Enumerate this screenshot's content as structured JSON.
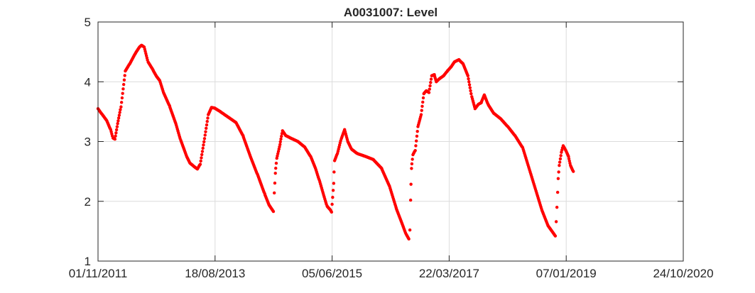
{
  "chart_data": {
    "type": "scatter",
    "title": "A0031007: Level",
    "xlabel": "",
    "ylabel": "",
    "xlim": [
      "2011-11-01",
      "2020-10-24"
    ],
    "ylim": [
      1,
      5
    ],
    "x_ticks": [
      "2011-11-01",
      "2013-08-18",
      "2015-06-05",
      "2017-03-22",
      "2019-01-07",
      "2020-10-24"
    ],
    "x_tick_labels": [
      "01/11/2011",
      "18/08/2013",
      "05/06/2015",
      "22/03/2017",
      "07/01/2019",
      "24/10/2020"
    ],
    "y_ticks": [
      1,
      2,
      3,
      4,
      5
    ],
    "y_tick_labels": [
      "1",
      "2",
      "3",
      "4",
      "5"
    ],
    "grid": true,
    "series": [
      {
        "color": "#ff0000",
        "segments": [
          [
            [
              "2011-11-01",
              3.55
            ],
            [
              "2011-11-23",
              3.46
            ],
            [
              "2011-12-20",
              3.35
            ],
            [
              "2012-01-11",
              3.2
            ],
            [
              "2012-01-24",
              3.06
            ],
            [
              "2012-02-04",
              3.04
            ],
            [
              "2012-02-19",
              3.3
            ],
            [
              "2012-03-09",
              3.58
            ],
            [
              "2012-04-02",
              4.18
            ],
            [
              "2012-04-27",
              4.3
            ],
            [
              "2012-05-28",
              4.47
            ],
            [
              "2012-06-20",
              4.58
            ],
            [
              "2012-07-02",
              4.61
            ],
            [
              "2012-07-17",
              4.58
            ],
            [
              "2012-08-08",
              4.33
            ],
            [
              "2012-09-04",
              4.2
            ],
            [
              "2012-09-24",
              4.09
            ],
            [
              "2012-10-12",
              4.02
            ],
            [
              "2012-11-02",
              3.82
            ],
            [
              "2012-12-06",
              3.6
            ],
            [
              "2013-01-10",
              3.3
            ],
            [
              "2013-02-07",
              3.02
            ],
            [
              "2013-03-12",
              2.75
            ],
            [
              "2013-03-30",
              2.64
            ],
            [
              "2013-04-23",
              2.58
            ],
            [
              "2013-05-11",
              2.54
            ],
            [
              "2013-05-27",
              2.62
            ],
            [
              "2013-06-20",
              3.05
            ],
            [
              "2013-07-11",
              3.45
            ],
            [
              "2013-07-29",
              3.57
            ],
            [
              "2013-08-16",
              3.56
            ],
            [
              "2013-09-17",
              3.5
            ],
            [
              "2013-10-25",
              3.42
            ],
            [
              "2013-12-13",
              3.32
            ],
            [
              "2014-01-22",
              3.1
            ],
            [
              "2014-03-04",
              2.75
            ],
            [
              "2014-04-13",
              2.45
            ],
            [
              "2014-05-23",
              2.13
            ],
            [
              "2014-06-15",
              1.95
            ],
            [
              "2014-07-11",
              1.83
            ]
          ],
          [
            [
              "2014-07-16",
              2.14
            ],
            [
              "2014-07-22",
              2.47
            ],
            [
              "2014-07-30",
              2.72
            ],
            [
              "2014-08-17",
              2.95
            ],
            [
              "2014-08-31",
              3.18
            ],
            [
              "2014-09-18",
              3.1
            ],
            [
              "2014-10-21",
              3.05
            ],
            [
              "2014-11-26",
              3.0
            ],
            [
              "2015-01-02",
              2.91
            ],
            [
              "2015-02-05",
              2.75
            ],
            [
              "2015-03-04",
              2.55
            ],
            [
              "2015-03-26",
              2.35
            ],
            [
              "2015-04-19",
              2.1
            ],
            [
              "2015-05-08",
              1.92
            ],
            [
              "2015-05-28",
              1.85
            ],
            [
              "2015-06-02",
              1.82
            ]
          ],
          [
            [
              "2015-06-05",
              1.95
            ],
            [
              "2015-06-14",
              2.3
            ],
            [
              "2015-06-19",
              2.68
            ],
            [
              "2015-07-05",
              2.8
            ],
            [
              "2015-07-27",
              3.05
            ],
            [
              "2015-08-14",
              3.2
            ],
            [
              "2015-09-01",
              3.0
            ],
            [
              "2015-09-23",
              2.87
            ],
            [
              "2015-10-24",
              2.8
            ],
            [
              "2015-12-10",
              2.75
            ],
            [
              "2016-01-22",
              2.7
            ],
            [
              "2016-03-09",
              2.55
            ],
            [
              "2016-04-22",
              2.25
            ],
            [
              "2016-05-28",
              1.9
            ],
            [
              "2016-07-02",
              1.62
            ],
            [
              "2016-07-24",
              1.45
            ],
            [
              "2016-08-08",
              1.37
            ]
          ],
          [
            [
              "2016-08-14",
              1.52
            ],
            [
              "2016-08-18",
              2.02
            ],
            [
              "2016-08-23",
              2.55
            ],
            [
              "2016-08-31",
              2.78
            ],
            [
              "2016-09-13",
              2.85
            ],
            [
              "2016-09-28",
              3.25
            ],
            [
              "2016-10-16",
              3.45
            ],
            [
              "2016-10-31",
              3.8
            ],
            [
              "2016-11-14",
              3.85
            ],
            [
              "2016-11-29",
              3.82
            ],
            [
              "2016-12-14",
              4.1
            ],
            [
              "2016-12-29",
              4.12
            ],
            [
              "2017-01-09",
              4.0
            ],
            [
              "2017-01-26",
              4.05
            ],
            [
              "2017-02-19",
              4.1
            ],
            [
              "2017-03-10",
              4.17
            ],
            [
              "2017-04-02",
              4.25
            ],
            [
              "2017-04-20",
              4.33
            ],
            [
              "2017-05-16",
              4.37
            ],
            [
              "2017-06-08",
              4.3
            ],
            [
              "2017-07-05",
              4.1
            ],
            [
              "2017-07-27",
              3.75
            ],
            [
              "2017-08-14",
              3.55
            ],
            [
              "2017-09-01",
              3.62
            ],
            [
              "2017-09-18",
              3.65
            ],
            [
              "2017-10-05",
              3.78
            ],
            [
              "2017-10-27",
              3.62
            ],
            [
              "2017-11-25",
              3.48
            ],
            [
              "2018-01-05",
              3.38
            ],
            [
              "2018-02-14",
              3.25
            ],
            [
              "2018-03-26",
              3.1
            ],
            [
              "2018-05-08",
              2.9
            ],
            [
              "2018-06-13",
              2.55
            ],
            [
              "2018-07-19",
              2.2
            ],
            [
              "2018-08-24",
              1.85
            ],
            [
              "2018-09-26",
              1.6
            ],
            [
              "2018-10-31",
              1.45
            ],
            [
              "2018-11-07",
              1.42
            ]
          ],
          [
            [
              "2018-11-12",
              1.66
            ],
            [
              "2018-11-16",
              1.9
            ],
            [
              "2018-11-20",
              2.15
            ],
            [
              "2018-11-23",
              2.38
            ],
            [
              "2018-11-29",
              2.6
            ],
            [
              "2018-12-11",
              2.82
            ],
            [
              "2018-12-21",
              2.93
            ],
            [
              "2019-01-05",
              2.85
            ],
            [
              "2019-01-20",
              2.75
            ],
            [
              "2019-01-31",
              2.6
            ],
            [
              "2019-02-16",
              2.5
            ]
          ]
        ]
      }
    ]
  }
}
